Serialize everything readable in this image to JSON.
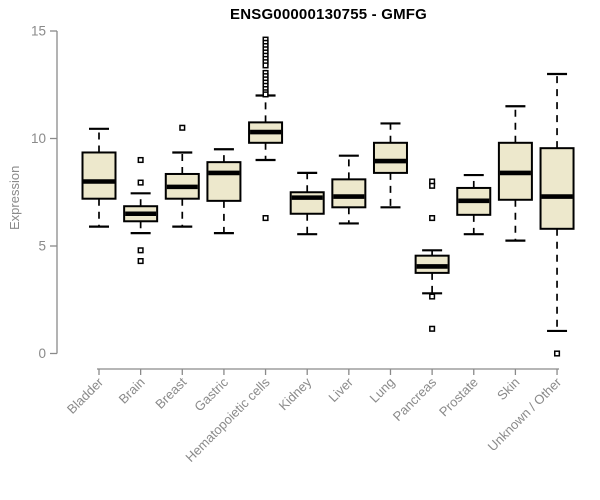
{
  "chart_data": {
    "type": "boxplot",
    "title": "ENSG00000130755 - GMFG",
    "xlabel": "",
    "ylabel": "Expression",
    "ylim": [
      0,
      15
    ],
    "yticks": [
      0,
      5,
      10,
      15
    ],
    "grid": false,
    "legend": "none",
    "categories": [
      "Bladder",
      "Brain",
      "Breast",
      "Gastric",
      "Hematopoietic cells",
      "Kidney",
      "Liver",
      "Lung",
      "Pancreas",
      "Prostate",
      "Skin",
      "Unknown / Other"
    ],
    "series": [
      {
        "name": "Bladder",
        "whisker_low": 5.9,
        "q1": 7.2,
        "median": 8.0,
        "q3": 9.35,
        "whisker_high": 10.45,
        "outliers": []
      },
      {
        "name": "Brain",
        "whisker_low": 5.6,
        "q1": 6.15,
        "median": 6.5,
        "q3": 6.85,
        "whisker_high": 7.45,
        "outliers": [
          9.0,
          7.95,
          4.8,
          4.3
        ]
      },
      {
        "name": "Breast",
        "whisker_low": 5.9,
        "q1": 7.2,
        "median": 7.75,
        "q3": 8.35,
        "whisker_high": 9.35,
        "outliers": [
          10.5
        ]
      },
      {
        "name": "Gastric",
        "whisker_low": 5.6,
        "q1": 7.1,
        "median": 8.4,
        "q3": 8.9,
        "whisker_high": 9.5,
        "outliers": []
      },
      {
        "name": "Hematopoietic cells",
        "whisker_low": 9.0,
        "q1": 9.8,
        "median": 10.3,
        "q3": 10.75,
        "whisker_high": 12.0,
        "outliers": [
          14.6,
          14.45,
          14.3,
          14.15,
          14.0,
          13.85,
          13.7,
          13.55,
          13.4,
          13.05,
          12.9,
          12.75,
          12.6,
          12.45,
          12.3,
          12.15,
          12.05,
          6.3
        ]
      },
      {
        "name": "Kidney",
        "whisker_low": 5.55,
        "q1": 6.5,
        "median": 7.25,
        "q3": 7.5,
        "whisker_high": 8.4,
        "outliers": []
      },
      {
        "name": "Liver",
        "whisker_low": 6.05,
        "q1": 6.8,
        "median": 7.3,
        "q3": 8.1,
        "whisker_high": 9.2,
        "outliers": []
      },
      {
        "name": "Lung",
        "whisker_low": 6.8,
        "q1": 8.4,
        "median": 8.95,
        "q3": 9.8,
        "whisker_high": 10.7,
        "outliers": []
      },
      {
        "name": "Pancreas",
        "whisker_low": 2.8,
        "q1": 3.75,
        "median": 4.05,
        "q3": 4.55,
        "whisker_high": 4.8,
        "outliers": [
          8.0,
          7.8,
          6.3,
          2.65,
          1.15
        ]
      },
      {
        "name": "Prostate",
        "whisker_low": 5.55,
        "q1": 6.45,
        "median": 7.1,
        "q3": 7.7,
        "whisker_high": 8.3,
        "outliers": []
      },
      {
        "name": "Skin",
        "whisker_low": 5.25,
        "q1": 7.15,
        "median": 8.4,
        "q3": 9.8,
        "whisker_high": 11.5,
        "outliers": []
      },
      {
        "name": "Unknown / Other",
        "whisker_low": 1.05,
        "q1": 5.8,
        "median": 7.3,
        "q3": 9.55,
        "whisker_high": 13.0,
        "outliers": [
          0
        ]
      }
    ]
  },
  "colors": {
    "box_fill": "#EDE8CC",
    "box_border": "#000000",
    "median": "#000000",
    "outlier_fill": "#FFFFFF",
    "axis": "#8a8a8a",
    "title": "#000000",
    "background": "#FFFFFF"
  }
}
